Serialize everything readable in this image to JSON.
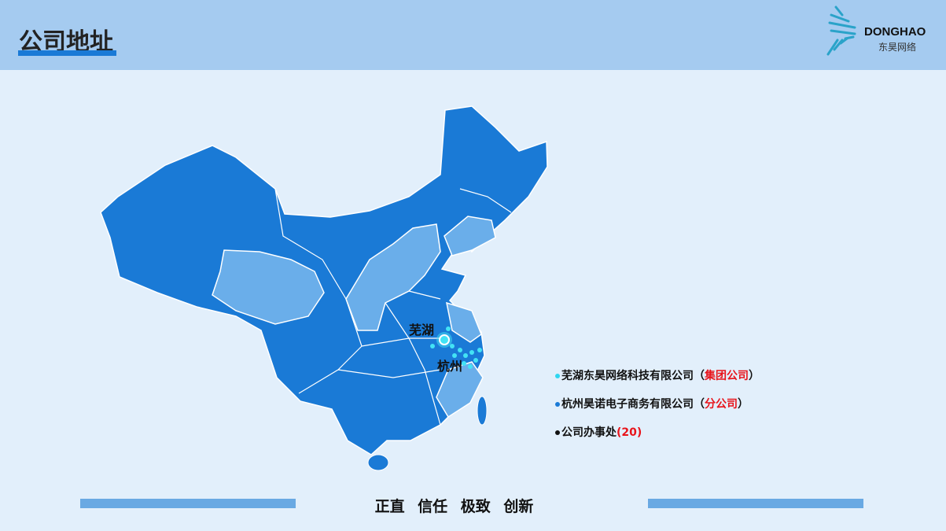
{
  "header": {
    "title": "公司地址",
    "logo_en": "DONGHAO",
    "logo_cn": "东昊网络"
  },
  "map": {
    "cities": [
      {
        "name": "芜湖"
      },
      {
        "name": "杭州"
      }
    ],
    "colors": {
      "province": "#1a7ad6",
      "highlight": "#6aaeea",
      "marker": "#43e3f5"
    }
  },
  "legend": [
    {
      "text": "芜湖东昊网络科技有限公司（",
      "tag": "集团公司",
      "end": "）",
      "dot": "#2fd6f0"
    },
    {
      "text": "杭州昊诺电子商务有限公司（",
      "tag": "分公司",
      "end": "）",
      "dot": "#1a7ad6"
    },
    {
      "text": "公司办事处",
      "tag": "(20)",
      "end": "",
      "dot": "#111111"
    }
  ],
  "footer": {
    "motto": "正直 信任 极致 创新"
  }
}
